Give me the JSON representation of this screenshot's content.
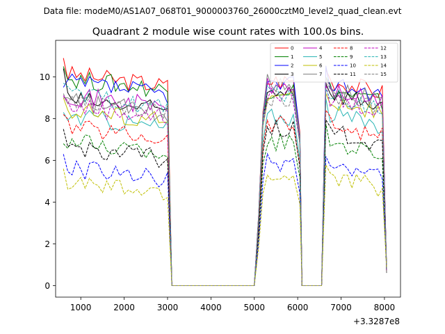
{
  "chart_data": {
    "type": "line",
    "suptitle": "Data file: modeM0/AS1A07_068T01_9000003760_26000cztM0_level2_quad_clean.evt",
    "title": "Quadrant 2 module wise count rates with 100.0s bins.",
    "xlabel": "",
    "ylabel": "",
    "x_offset_label": "+3.3287e8",
    "xlim": [
      420,
      8370
    ],
    "ylim": [
      -0.55,
      11.75
    ],
    "xticks": [
      1000,
      2000,
      3000,
      4000,
      5000,
      6000,
      7000,
      8000
    ],
    "yticks": [
      0,
      2,
      4,
      6,
      8,
      10
    ],
    "legend_position": "top-right",
    "gaps": [
      [
        3100,
        5000
      ],
      [
        6100,
        6550
      ]
    ],
    "segments": [
      [
        600,
        3050
      ],
      [
        5000,
        6050
      ],
      [
        6550,
        8050
      ]
    ],
    "bin_width": 100,
    "series": [
      {
        "name": "0",
        "color": "#ff0000",
        "dash": "solid",
        "base": 9.8,
        "b2": 9.8,
        "b3": 9.5,
        "first": 10.9
      },
      {
        "name": "1",
        "color": "#008000",
        "dash": "solid",
        "base": 9.6,
        "b2": 9.4,
        "b3": 9.0,
        "first": 10.5
      },
      {
        "name": "2",
        "color": "#0000ff",
        "dash": "solid",
        "base": 9.4,
        "b2": 9.6,
        "b3": 9.4,
        "first": 9.5
      },
      {
        "name": "3",
        "color": "#000000",
        "dash": "solid",
        "base": 8.6,
        "b2": 9.4,
        "b3": 8.9,
        "first": 10.4
      },
      {
        "name": "4",
        "color": "#bf00bf",
        "dash": "solid",
        "base": 8.8,
        "b2": 9.5,
        "b3": 9.0,
        "first": 9.1
      },
      {
        "name": "5",
        "color": "#2ab5b5",
        "dash": "solid",
        "base": 7.8,
        "b2": 8.1,
        "b3": 7.9,
        "first": 8.3
      },
      {
        "name": "6",
        "color": "#bfbf00",
        "dash": "solid",
        "base": 8.1,
        "b2": 9.0,
        "b3": 8.5,
        "first": 9.0
      },
      {
        "name": "7",
        "color": "#808080",
        "dash": "solid",
        "base": 8.5,
        "b2": 9.7,
        "b3": 9.1,
        "first": 9.0
      },
      {
        "name": "8",
        "color": "#ff0000",
        "dash": "dashed",
        "base": 7.3,
        "b2": 7.8,
        "b3": 7.4,
        "first": 8.2
      },
      {
        "name": "9",
        "color": "#008000",
        "dash": "dashed",
        "base": 6.6,
        "b2": 6.9,
        "b3": 6.6,
        "first": 6.8
      },
      {
        "name": "10",
        "color": "#0000ff",
        "dash": "dashed",
        "base": 5.3,
        "b2": 5.9,
        "b3": 5.4,
        "first": 6.3
      },
      {
        "name": "11",
        "color": "#000000",
        "dash": "dashed",
        "base": 6.3,
        "b2": 7.5,
        "b3": 7.0,
        "first": 7.5
      },
      {
        "name": "12",
        "color": "#bf00bf",
        "dash": "dashed",
        "base": 8.3,
        "b2": 9.1,
        "b3": 8.6,
        "first": 9.1
      },
      {
        "name": "13",
        "color": "#2ab5b5",
        "dash": "dashed",
        "base": 8.8,
        "b2": 9.2,
        "b3": 8.7,
        "first": 9.7
      },
      {
        "name": "14",
        "color": "#bfbf00",
        "dash": "dashed",
        "base": 4.6,
        "b2": 5.2,
        "b3": 4.9,
        "first": 5.6
      },
      {
        "name": "15",
        "color": "#808080",
        "dash": "dashed",
        "base": 8.5,
        "b2": 9.0,
        "b3": 8.7,
        "first": 9.2
      }
    ]
  }
}
